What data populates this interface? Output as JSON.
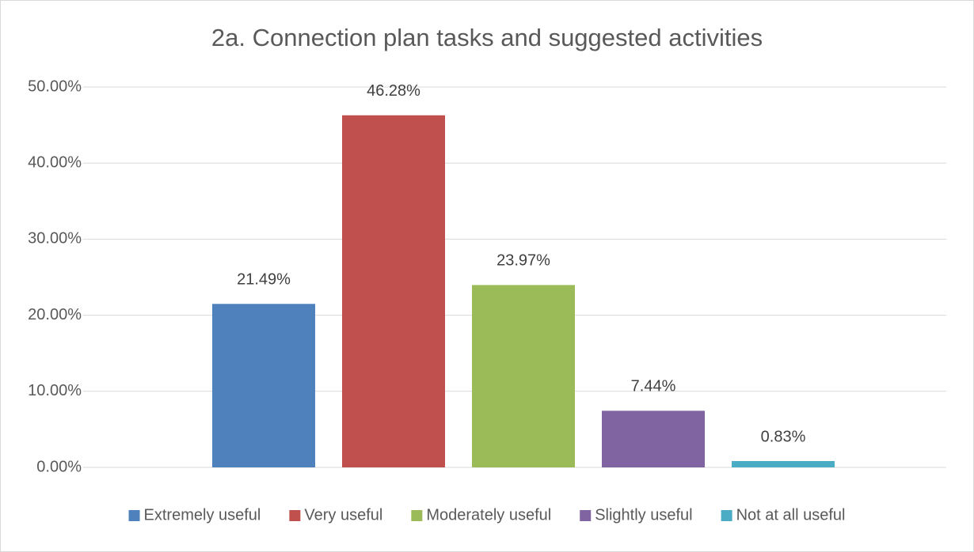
{
  "chart_data": {
    "type": "bar",
    "title": "2a. Connection plan tasks and suggested activities",
    "categories": [
      null
    ],
    "series": [
      {
        "name": "Extremely useful",
        "color": "#4f81bd",
        "values": [
          21.49
        ],
        "value_labels": [
          "21.49%"
        ]
      },
      {
        "name": "Very useful",
        "color": "#c0504d",
        "values": [
          46.28
        ],
        "value_labels": [
          "46.28%"
        ]
      },
      {
        "name": "Moderately useful",
        "color": "#9bbb59",
        "values": [
          23.97
        ],
        "value_labels": [
          "23.97%"
        ]
      },
      {
        "name": "Slightly useful",
        "color": "#8064a2",
        "values": [
          7.44
        ],
        "value_labels": [
          "7.44%"
        ]
      },
      {
        "name": "Not at all useful",
        "color": "#4bacc6",
        "values": [
          0.83
        ],
        "value_labels": [
          "0.83%"
        ]
      }
    ],
    "ylim": [
      0,
      50
    ],
    "yticks": [
      {
        "value": 0,
        "label": "0.00%"
      },
      {
        "value": 10,
        "label": "10.00%"
      },
      {
        "value": 20,
        "label": "20.00%"
      },
      {
        "value": 30,
        "label": "30.00%"
      },
      {
        "value": 40,
        "label": "40.00%"
      },
      {
        "value": 50,
        "label": "50.00%"
      }
    ],
    "grid": true,
    "legend": "bottom"
  }
}
